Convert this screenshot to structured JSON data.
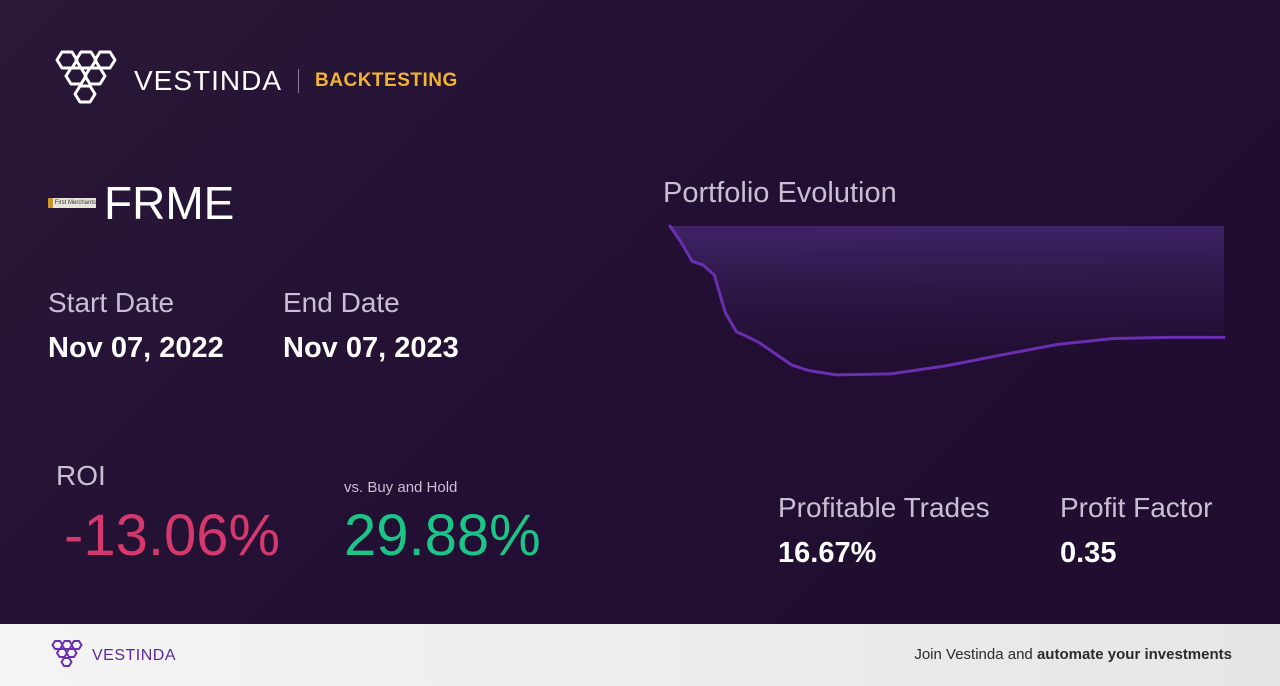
{
  "header": {
    "brand": "VESTINDA",
    "section": "BACKTESTING"
  },
  "ticker": {
    "symbol": "FRME",
    "logo_text": "First Merchants"
  },
  "dates": {
    "start_label": "Start Date",
    "start_value": "Nov 07, 2022",
    "end_label": "End Date",
    "end_value": "Nov 07, 2023"
  },
  "roi": {
    "label": "ROI",
    "value": "-13.06%",
    "vs_label": "vs. Buy and Hold",
    "vs_value": "29.88%"
  },
  "metrics": {
    "profitable_trades_label": "Profitable Trades",
    "profitable_trades_value": "16.67%",
    "profit_factor_label": "Profit Factor",
    "profit_factor_value": "0.35"
  },
  "chart": {
    "title": "Portfolio Evolution",
    "line_color": "#6a2fb0"
  },
  "chart_data": {
    "type": "area",
    "title": "Portfolio Evolution",
    "x": [
      0,
      2,
      4,
      6,
      8,
      10,
      12,
      14,
      16,
      18,
      20,
      22,
      25,
      30,
      40,
      50,
      60,
      70,
      80,
      90,
      100
    ],
    "values": [
      100,
      97,
      93.5,
      92.8,
      91,
      84,
      80.5,
      79.6,
      78.6,
      77.2,
      75.8,
      74.4,
      73.4,
      72.6,
      72.8,
      74.3,
      76.3,
      78.2,
      79.3,
      79.5,
      79.5
    ],
    "ylim": [
      70,
      100
    ]
  },
  "footer": {
    "brand": "VESTINDA",
    "cta_prefix": "Join Vestinda and ",
    "cta_bold": "automate your investments"
  },
  "colors": {
    "negative": "#d4386c",
    "positive": "#1bc487",
    "accent": "#f3b230"
  }
}
